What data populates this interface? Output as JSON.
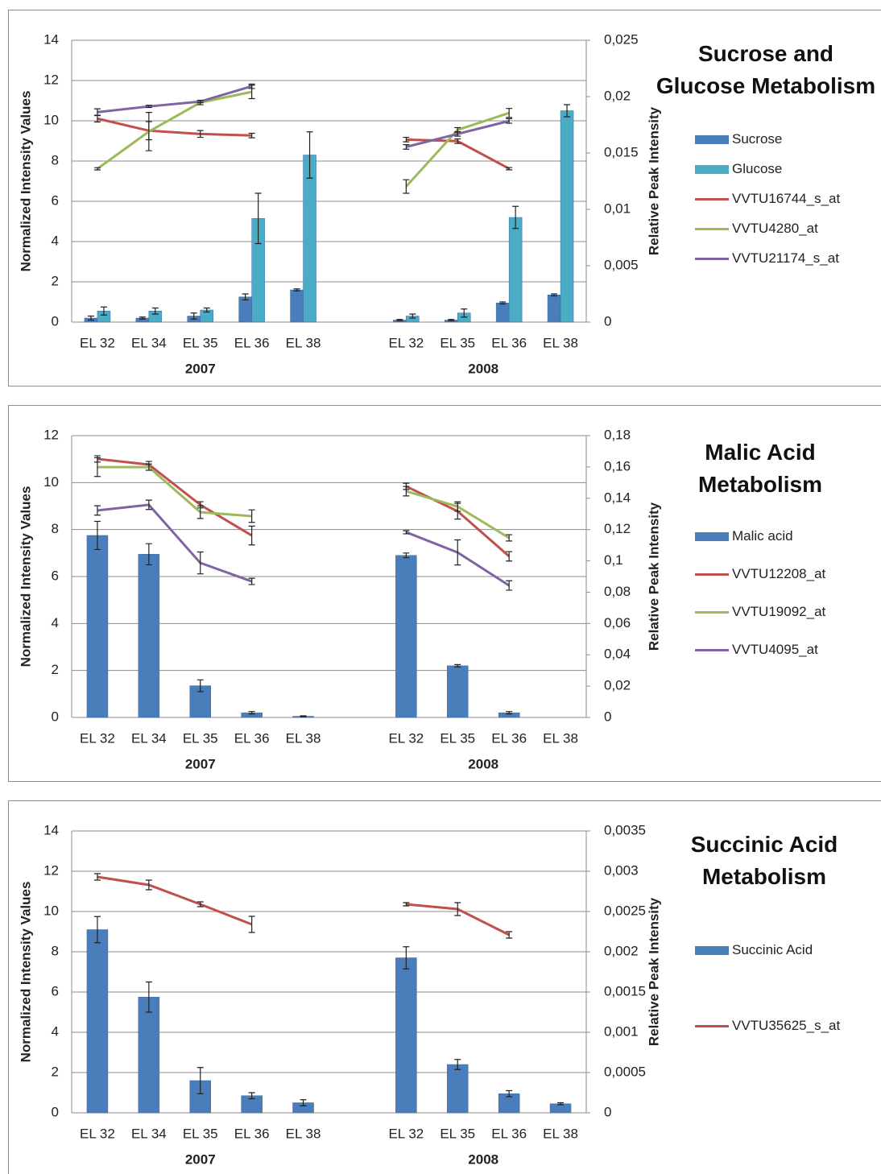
{
  "chart_data": [
    {
      "type": "bar-line",
      "title": "Sucrose and Glucose Metabolism",
      "y_label": "Normalized Intensity Values",
      "y2_label": "Relative Peak Intensity",
      "categories": [
        "EL 32",
        "EL 34",
        "EL 35",
        "EL 36",
        "EL 38",
        null,
        "EL 32",
        "EL 35",
        "EL 36",
        "EL 38"
      ],
      "groups": [
        "2007",
        "2008"
      ],
      "ylim": [
        0,
        14
      ],
      "yticks": [
        0,
        2,
        4,
        6,
        8,
        10,
        12,
        14
      ],
      "y2lim": [
        0,
        0.025
      ],
      "y2ticks": [
        0,
        {
          "value": 0.005,
          "label": "0,005"
        },
        {
          "value": 0.01,
          "label": "0,01"
        },
        {
          "value": 0.015,
          "label": "0,015"
        },
        {
          "value": 0.02,
          "label": "0,02"
        },
        {
          "value": 0.025,
          "label": "0,025"
        }
      ],
      "grid": true,
      "series": [
        {
          "name": "Sucrose",
          "kind": "bar",
          "color": "#4a7ebb",
          "values": [
            0.2,
            0.2,
            0.3,
            1.25,
            1.6,
            null,
            0.1,
            0.1,
            0.95,
            1.35
          ],
          "errors": [
            0.1,
            0.05,
            0.15,
            0.15,
            0.05,
            null,
            0.03,
            0.03,
            0.05,
            0.05
          ]
        },
        {
          "name": "Glucose",
          "kind": "bar",
          "color": "#4bacc6",
          "values": [
            0.55,
            0.55,
            0.6,
            5.15,
            8.3,
            null,
            0.3,
            0.45,
            5.2,
            10.5
          ],
          "errors": [
            0.2,
            0.15,
            0.1,
            1.25,
            1.15,
            null,
            0.1,
            0.2,
            0.55,
            0.3
          ]
        },
        {
          "name": "VVTU16744_s_at",
          "kind": "line",
          "axis": "y2",
          "color": "#c0504d",
          "values": [
            0.01805,
            0.01698,
            0.01669,
            0.01655,
            null,
            null,
            0.01619,
            0.01605,
            0.01361,
            null
          ],
          "errors": [
            0.0003,
            0.0008,
            0.0003,
            0.0002,
            null,
            null,
            0.0002,
            0.0002,
            0.0001,
            null
          ]
        },
        {
          "name": "VVTU4280_at",
          "kind": "line",
          "axis": "y2",
          "color": "#9bbb59",
          "values": [
            0.0136,
            0.0169,
            0.01948,
            0.02042,
            null,
            null,
            0.01203,
            0.01705,
            0.01855,
            null
          ],
          "errors": [
            0.0001,
            0.0017,
            0.0002,
            0.0006,
            null,
            null,
            0.0006,
            0.0002,
            0.0004,
            null
          ]
        },
        {
          "name": "VVTU21174_s_at",
          "kind": "line",
          "axis": "y2",
          "color": "#8064a2",
          "values": [
            0.01862,
            0.01913,
            0.01956,
            0.02092,
            null,
            null,
            0.01554,
            0.01669,
            0.01784,
            null
          ],
          "errors": [
            0.0003,
            0.0001,
            0.0001,
            0.0002,
            null,
            null,
            0.0002,
            0.0002,
            0.0002,
            null
          ]
        }
      ]
    },
    {
      "type": "bar-line",
      "title": "Malic Acid Metabolism",
      "y_label": "Normalized Intensity Values",
      "y2_label": "Relative Peak Intensity",
      "categories": [
        "EL 32",
        "EL 34",
        "EL 35",
        "EL 36",
        "EL 38",
        null,
        "EL 32",
        "EL 35",
        "EL 36",
        "EL 38"
      ],
      "groups": [
        "2007",
        "2008"
      ],
      "ylim": [
        0,
        12
      ],
      "yticks": [
        0,
        2,
        4,
        6,
        8,
        10,
        12
      ],
      "y2lim": [
        0,
        0.18
      ],
      "y2ticks": [
        0,
        {
          "value": 0.02,
          "label": "0,02"
        },
        {
          "value": 0.04,
          "label": "0,04"
        },
        {
          "value": 0.06,
          "label": "0,06"
        },
        {
          "value": 0.08,
          "label": "0,08"
        },
        {
          "value": 0.1,
          "label": "0,1"
        },
        {
          "value": 0.12,
          "label": "0,12"
        },
        {
          "value": 0.14,
          "label": "0,14"
        },
        {
          "value": 0.16,
          "label": "0,16"
        },
        {
          "value": 0.18,
          "label": "0,18"
        }
      ],
      "grid": true,
      "series": [
        {
          "name": "Malic acid",
          "kind": "bar",
          "color": "#4a7ebb",
          "values": [
            7.75,
            6.95,
            1.35,
            0.2,
            0.05,
            null,
            6.9,
            2.2,
            0.2,
            null
          ],
          "errors": [
            0.6,
            0.45,
            0.25,
            0.05,
            0.02,
            null,
            0.1,
            0.05,
            0.05,
            null
          ]
        },
        {
          "name": "VVTU12208_at",
          "kind": "line",
          "axis": "y2",
          "color": "#c0504d",
          "values": [
            0.1651,
            0.1615,
            0.1358,
            0.1162,
            null,
            null,
            0.1476,
            0.1317,
            0.1029,
            null
          ],
          "errors": [
            0.002,
            0.002,
            0.002,
            0.006,
            null,
            null,
            0.002,
            0.005,
            0.003,
            null
          ]
        },
        {
          "name": "VVTU19092_at",
          "kind": "line",
          "axis": "y2",
          "color": "#9bbb59",
          "values": [
            0.1599,
            0.1599,
            0.1311,
            0.1286,
            null,
            null,
            0.1445,
            0.1347,
            0.1147,
            null
          ],
          "errors": [
            0.006,
            0.002,
            0.004,
            0.004,
            null,
            null,
            0.003,
            0.003,
            0.002,
            null
          ]
        },
        {
          "name": "VVTU4095_at",
          "kind": "line",
          "axis": "y2",
          "color": "#8064a2",
          "values": [
            0.1322,
            0.1358,
            0.0987,
            0.0869,
            null,
            null,
            0.1183,
            0.1054,
            0.0843,
            null
          ],
          "errors": [
            0.003,
            0.003,
            0.007,
            0.002,
            null,
            null,
            0.001,
            0.008,
            0.003,
            null
          ]
        }
      ]
    },
    {
      "type": "bar-line",
      "title": "Succinic Acid Metabolism",
      "y_label": "Normalized Intensity Values",
      "y2_label": "Relative Peak Intensity",
      "categories": [
        "EL 32",
        "EL 34",
        "EL 35",
        "EL 36",
        "EL 38",
        null,
        "EL 32",
        "EL 35",
        "EL 36",
        "EL 38"
      ],
      "groups": [
        "2007",
        "2008"
      ],
      "ylim": [
        0,
        14
      ],
      "yticks": [
        0,
        2,
        4,
        6,
        8,
        10,
        12,
        14
      ],
      "y2lim": [
        0,
        0.0035
      ],
      "y2ticks": [
        0,
        {
          "value": 0.0005,
          "label": "0,0005"
        },
        {
          "value": 0.001,
          "label": "0,001"
        },
        {
          "value": 0.0015,
          "label": "0,0015"
        },
        {
          "value": 0.002,
          "label": "0,002"
        },
        {
          "value": 0.0025,
          "label": "0,0025"
        },
        {
          "value": 0.003,
          "label": "0,003"
        },
        {
          "value": 0.0035,
          "label": "0,0035"
        }
      ],
      "grid": true,
      "series": [
        {
          "name": "Succinic Acid",
          "kind": "bar",
          "color": "#4a7ebb",
          "values": [
            9.1,
            5.75,
            1.6,
            0.85,
            0.5,
            null,
            7.7,
            2.4,
            0.95,
            0.45
          ],
          "errors": [
            0.65,
            0.75,
            0.65,
            0.15,
            0.15,
            null,
            0.55,
            0.25,
            0.15,
            0.05
          ]
        },
        {
          "name": "VVTU35625_s_at",
          "kind": "line",
          "axis": "y2",
          "color": "#c0504d",
          "values": [
            0.00293,
            0.00283,
            0.00259,
            0.00234,
            null,
            null,
            0.00259,
            0.00253,
            0.00221,
            null
          ],
          "errors": [
            4e-05,
            6e-05,
            3e-05,
            0.0001,
            null,
            null,
            2e-05,
            8e-05,
            4e-05,
            null
          ]
        }
      ]
    }
  ]
}
